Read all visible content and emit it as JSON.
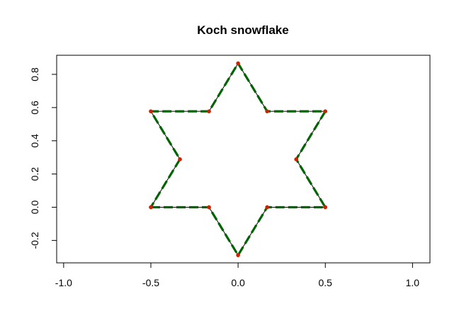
{
  "chart_data": {
    "type": "line",
    "title": "Koch snowflake",
    "xlabel": "",
    "ylabel": "",
    "xlim": [
      -1.04,
      1.1
    ],
    "ylim": [
      -0.335,
      0.915
    ],
    "x_ticks": [
      -1.0,
      -0.5,
      0.0,
      0.5,
      1.0
    ],
    "x_tick_labels": [
      "-1.0",
      "-0.5",
      "0.0",
      "0.5",
      "1.0"
    ],
    "y_ticks": [
      -0.2,
      0.0,
      0.2,
      0.4,
      0.6,
      0.8
    ],
    "y_tick_labels": [
      "-0.2",
      "0.0",
      "0.2",
      "0.4",
      "0.6",
      "0.8"
    ],
    "grid": false,
    "legend": "none",
    "series": [
      {
        "style": "solid",
        "color": "#000000",
        "x": [
          -0.5,
          -0.1667,
          0.0,
          0.1667,
          0.5,
          0.3333,
          0.5,
          0.1667,
          0.0,
          -0.1667,
          -0.5,
          -0.3333,
          -0.5
        ],
        "y": [
          0.0,
          0.0,
          -0.2887,
          0.0,
          0.0,
          0.2887,
          0.5774,
          0.5774,
          0.866,
          0.5774,
          0.5774,
          0.2887,
          0.0
        ]
      },
      {
        "style": "dashed",
        "color": "#006400",
        "x": [
          -0.5,
          -0.1667,
          0.0,
          0.1667,
          0.5,
          0.3333,
          0.5,
          0.1667,
          0.0,
          -0.1667,
          -0.5,
          -0.3333,
          -0.5
        ],
        "y": [
          0.0,
          0.0,
          -0.2887,
          0.0,
          0.0,
          0.2887,
          0.5774,
          0.5774,
          0.866,
          0.5774,
          0.5774,
          0.2887,
          0.0
        ]
      }
    ],
    "points": {
      "color": "#cc2200",
      "x": [
        -0.5,
        -0.1667,
        0.0,
        0.1667,
        0.5,
        0.3333,
        0.5,
        0.1667,
        0.0,
        -0.1667,
        -0.5,
        -0.3333
      ],
      "y": [
        0.0,
        0.0,
        -0.2887,
        0.0,
        0.0,
        0.2887,
        0.5774,
        0.5774,
        0.866,
        0.5774,
        0.5774,
        0.2887
      ]
    }
  }
}
